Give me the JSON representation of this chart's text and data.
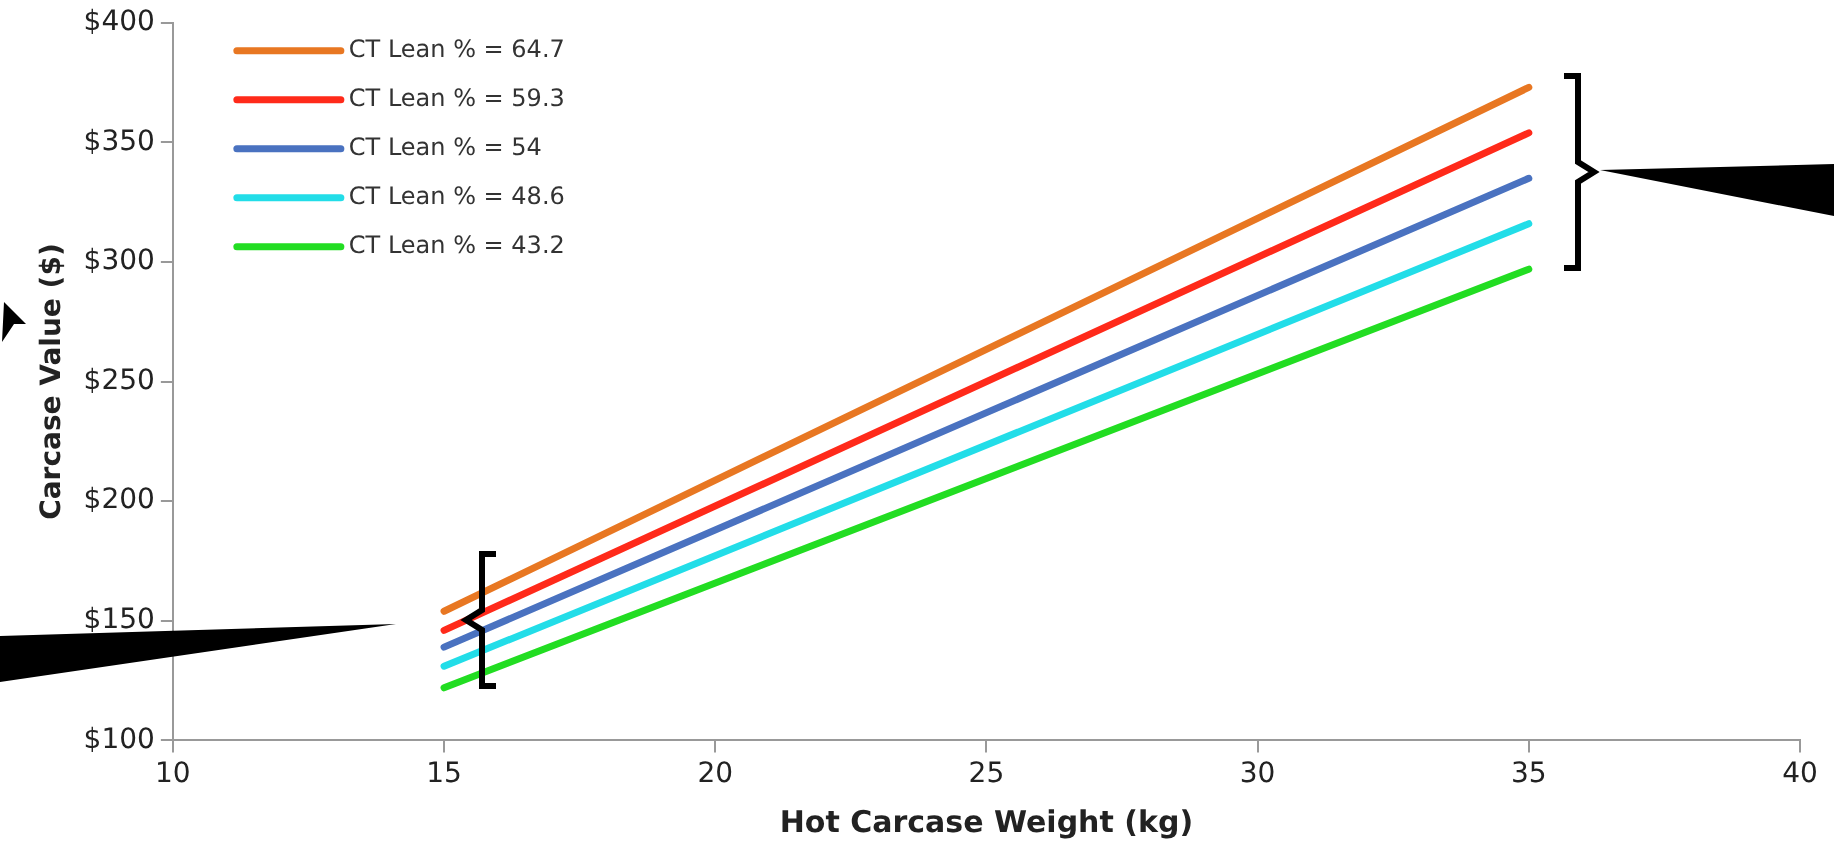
{
  "chart_data": {
    "type": "line",
    "xlabel": "Hot Carcase Weight (kg)",
    "ylabel": "Carcase Value ($)",
    "x": [
      15,
      35
    ],
    "series": [
      {
        "name": "CT Lean % = 64.7",
        "color": "#e87722",
        "values": [
          154,
          373
        ]
      },
      {
        "name": "CT Lean % = 59.3",
        "color": "#ff2a1a",
        "values": [
          146,
          354
        ]
      },
      {
        "name": "CT Lean % = 54",
        "color": "#4a72c0",
        "values": [
          139,
          335
        ]
      },
      {
        "name": "CT Lean % = 48.6",
        "color": "#22dde8",
        "values": [
          131,
          316
        ]
      },
      {
        "name": "CT Lean % = 43.2",
        "color": "#22dd22",
        "values": [
          122,
          297
        ]
      }
    ],
    "xlim": [
      10,
      40
    ],
    "xticks": [
      10,
      15,
      20,
      25,
      30,
      35,
      40
    ],
    "ylim": [
      100,
      400
    ],
    "yticks": [
      {
        "value": 100,
        "label": "$100"
      },
      {
        "value": 150,
        "label": "$150"
      },
      {
        "value": 200,
        "label": "$200"
      },
      {
        "value": 250,
        "label": "$250"
      },
      {
        "value": 300,
        "label": "$300"
      },
      {
        "value": 350,
        "label": "$350"
      },
      {
        "value": 400,
        "label": "$400"
      }
    ],
    "grid": false,
    "legend": "top left",
    "marker": "none",
    "line_style": "solid"
  }
}
